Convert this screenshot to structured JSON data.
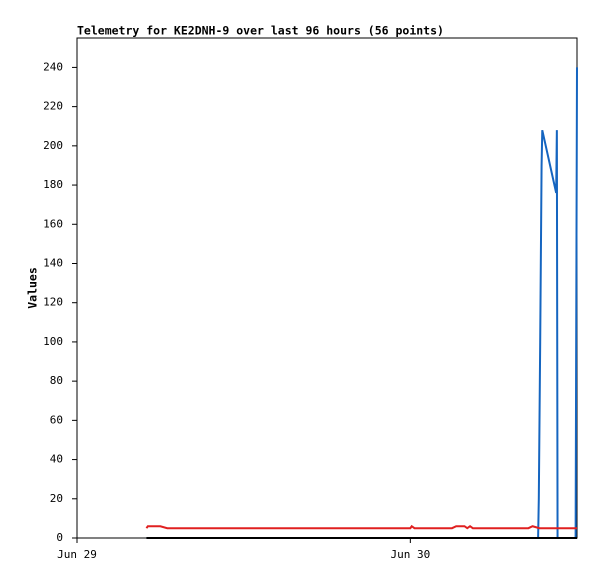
{
  "chart_data": {
    "type": "line",
    "title": "Telemetry for KE2DNH-9 over last 96 hours (56 points)",
    "y_label": "Values",
    "xlim": [
      0,
      36
    ],
    "xticks": [
      {
        "value": 0,
        "label": "Jun 29"
      },
      {
        "value": 24,
        "label": "Jun 30"
      }
    ],
    "ylim": [
      0,
      255
    ],
    "yticks": [
      0,
      20,
      40,
      60,
      80,
      100,
      120,
      140,
      160,
      180,
      200,
      220,
      240
    ],
    "series": [
      {
        "color": "#1565c0",
        "x": [
          5.0,
          33.2,
          33.25,
          33.3,
          33.35,
          33.4,
          33.45,
          33.5,
          34.5,
          34.55,
          34.6,
          35.9,
          36.0
        ],
        "values": [
          0,
          0,
          20,
          60,
          100,
          145,
          190,
          208,
          176,
          208,
          0,
          0,
          240
        ]
      },
      {
        "color": "#e02020",
        "x": [
          5.0,
          5.1,
          6.0,
          6.5,
          24.0,
          24.1,
          24.3,
          27.0,
          27.3,
          27.9,
          28.1,
          28.3,
          28.5,
          32.5,
          32.8,
          33.3,
          36.0
        ],
        "values": [
          5,
          6,
          6,
          5,
          5,
          6,
          5,
          5,
          6,
          6,
          5,
          6,
          5,
          5,
          6,
          5,
          5
        ]
      },
      {
        "color": "#000000",
        "x": [
          5.0,
          36.0
        ],
        "values": [
          0,
          0
        ]
      }
    ]
  }
}
